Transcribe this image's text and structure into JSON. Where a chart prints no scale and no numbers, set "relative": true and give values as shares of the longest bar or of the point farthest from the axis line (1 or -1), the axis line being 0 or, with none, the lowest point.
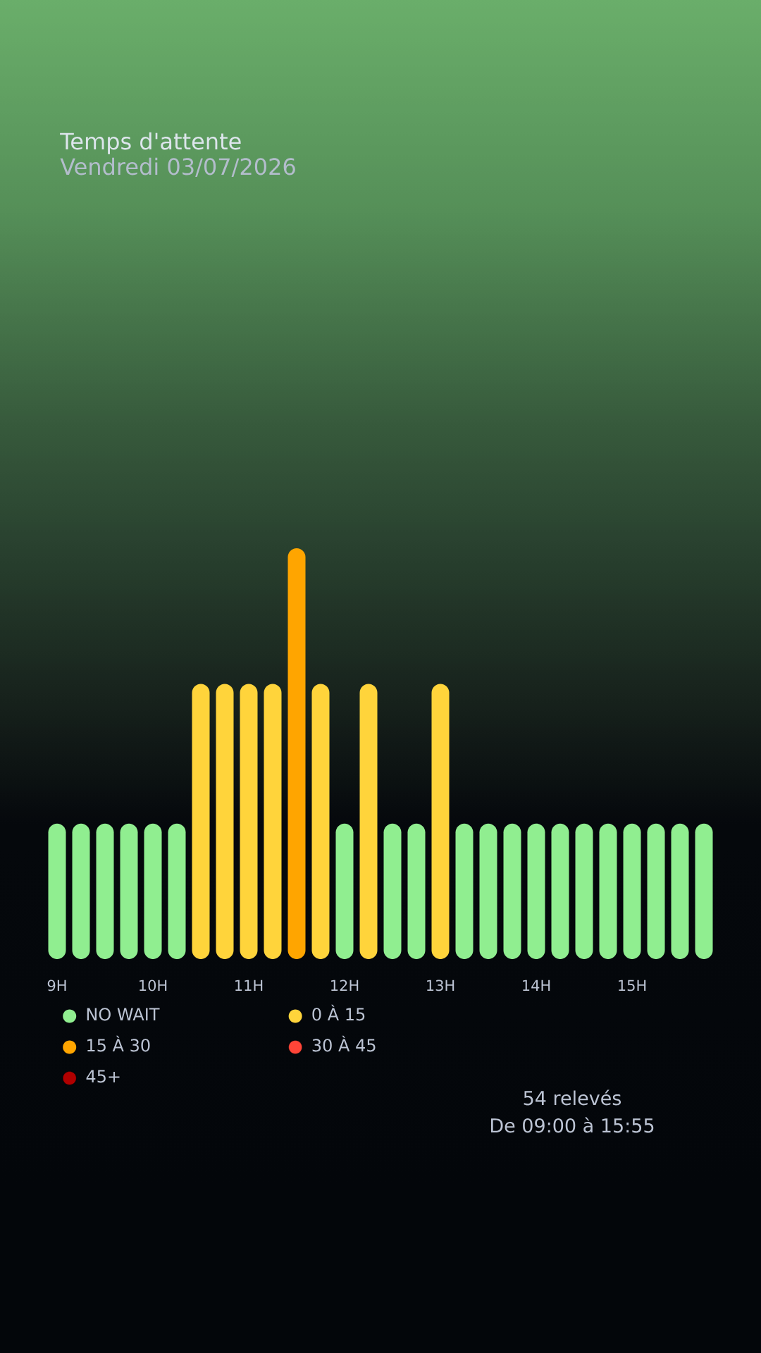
{
  "chart_data": {
    "type": "bar",
    "title": "Temps d'attente",
    "subtitle": "Vendredi 03/07/2026",
    "categories": [
      "9H",
      null,
      null,
      null,
      "10H",
      null,
      null,
      null,
      "11H",
      null,
      null,
      null,
      "12H",
      null,
      null,
      null,
      "13H",
      null,
      null,
      null,
      "14H",
      null,
      null,
      null,
      "15H",
      null,
      null,
      null
    ],
    "series": [
      {
        "name": "NO WAIT",
        "color": "#90ee90",
        "values": [
          0.33,
          0.33,
          0.33,
          0.33,
          0.33,
          0.33,
          null,
          null,
          null,
          null,
          null,
          null,
          0.33,
          null,
          0.33,
          0.33,
          null,
          0.33,
          0.33,
          0.33,
          0.33,
          0.33,
          0.33,
          0.33,
          0.33,
          0.33,
          0.33,
          0.33
        ]
      },
      {
        "name": "0 À 15",
        "color": "#ffd43b",
        "values": [
          null,
          null,
          null,
          null,
          null,
          null,
          0.67,
          0.67,
          0.67,
          0.67,
          null,
          0.67,
          null,
          0.67,
          null,
          null,
          0.67,
          null,
          null,
          null,
          null,
          null,
          null,
          null,
          null,
          null,
          null,
          null
        ]
      },
      {
        "name": "15 À 30",
        "color": "#ffa500",
        "values": [
          null,
          null,
          null,
          null,
          null,
          null,
          null,
          null,
          null,
          null,
          1,
          null,
          null,
          null,
          null,
          null,
          null,
          null,
          null,
          null,
          null,
          null,
          null,
          null,
          null,
          null,
          null,
          null
        ]
      },
      {
        "name": "30 À 45",
        "color": "#ff4538",
        "values": [
          null,
          null,
          null,
          null,
          null,
          null,
          null,
          null,
          null,
          null,
          null,
          null,
          null,
          null,
          null,
          null,
          null,
          null,
          null,
          null,
          null,
          null,
          null,
          null,
          null,
          null,
          null,
          null
        ]
      },
      {
        "name": "45+",
        "color": "#b00000",
        "values": [
          null,
          null,
          null,
          null,
          null,
          null,
          null,
          null,
          null,
          null,
          null,
          null,
          null,
          null,
          null,
          null,
          null,
          null,
          null,
          null,
          null,
          null,
          null,
          null,
          null,
          null,
          null,
          null
        ]
      }
    ],
    "relative": true,
    "legend": "bottom",
    "annotations": [
      "54 relevés",
      "De 09:00 à 15:55"
    ]
  }
}
